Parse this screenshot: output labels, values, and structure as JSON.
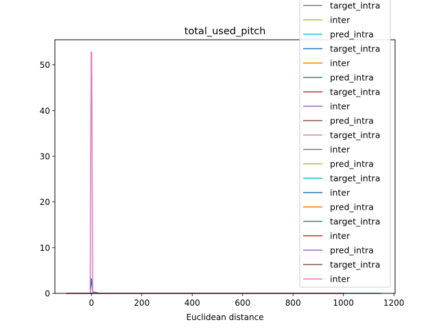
{
  "chart_data": {
    "type": "line",
    "title": "total_used_pitch",
    "xlabel": "Euclidean distance",
    "ylabel": "",
    "xlim": [
      -145,
      1205
    ],
    "ylim": [
      0,
      55.5
    ],
    "x_ticks": [
      0,
      200,
      400,
      600,
      800,
      1000,
      1200
    ],
    "x_tick_labels": [
      "0",
      "200",
      "400",
      "600",
      "800",
      "1000",
      "1200"
    ],
    "y_ticks": [
      0,
      10,
      20,
      30,
      40,
      50
    ],
    "y_tick_labels": [
      "0",
      "10",
      "20",
      "30",
      "40",
      "50"
    ],
    "grid": false,
    "legend_position": "top-right (overflowing above plot area)",
    "series": [
      {
        "name": "target_intra",
        "color": "#7f7f7f",
        "x": [
          -100,
          0,
          1000
        ],
        "y": [
          0,
          0,
          0
        ]
      },
      {
        "name": "inter",
        "color": "#bcbd22",
        "x": [
          -100,
          0,
          1000
        ],
        "y": [
          0,
          0,
          0
        ]
      },
      {
        "name": "pred_intra",
        "color": "#17becf",
        "x": [
          -100,
          0,
          1000
        ],
        "y": [
          0,
          0,
          0
        ]
      },
      {
        "name": "target_intra",
        "color": "#1f77b4",
        "x": [
          -100,
          -5,
          0,
          5,
          30,
          1150
        ],
        "y": [
          0,
          0,
          3.2,
          0.3,
          0.05,
          0
        ]
      },
      {
        "name": "inter",
        "color": "#ff7f0e",
        "x": [
          -100,
          0,
          1000
        ],
        "y": [
          0,
          0,
          0
        ]
      },
      {
        "name": "pred_intra",
        "color": "#2ca02c",
        "x": [
          -100,
          0,
          1000
        ],
        "y": [
          0,
          0,
          0
        ]
      },
      {
        "name": "target_intra",
        "color": "#d62728",
        "x": [
          -100,
          0,
          1000
        ],
        "y": [
          0,
          0,
          0
        ]
      },
      {
        "name": "inter",
        "color": "#9467bd",
        "x": [
          -100,
          0,
          1000
        ],
        "y": [
          0,
          0,
          0
        ]
      },
      {
        "name": "pred_intra",
        "color": "#8c564b",
        "x": [
          -100,
          0,
          1000
        ],
        "y": [
          0,
          0,
          0
        ]
      },
      {
        "name": "target_intra",
        "color": "#e377c2",
        "x": [
          -100,
          -5,
          -1,
          0,
          1,
          5,
          30,
          1000
        ],
        "y": [
          0,
          0,
          52.8,
          52.8,
          52.8,
          0.1,
          0,
          0
        ]
      },
      {
        "name": "inter",
        "color": "#7f7f7f",
        "x": [
          -100,
          0,
          1000
        ],
        "y": [
          0,
          0,
          0
        ]
      },
      {
        "name": "pred_intra",
        "color": "#bcbd22",
        "x": [
          -100,
          0,
          1000
        ],
        "y": [
          0,
          0,
          0
        ]
      },
      {
        "name": "target_intra",
        "color": "#17becf",
        "x": [
          -100,
          0,
          1000
        ],
        "y": [
          0,
          0,
          0
        ]
      },
      {
        "name": "inter",
        "color": "#1f77b4",
        "x": [
          -100,
          0,
          1000
        ],
        "y": [
          0,
          0,
          0
        ]
      },
      {
        "name": "pred_intra",
        "color": "#ff7f0e",
        "x": [
          -100,
          0,
          1000
        ],
        "y": [
          0,
          0,
          0
        ]
      },
      {
        "name": "target_intra",
        "color": "#2ca02c",
        "x": [
          -100,
          0,
          1000
        ],
        "y": [
          0,
          0,
          0
        ]
      },
      {
        "name": "inter",
        "color": "#d62728",
        "x": [
          -100,
          0,
          1000
        ],
        "y": [
          0,
          0,
          0
        ]
      },
      {
        "name": "pred_intra",
        "color": "#9467bd",
        "x": [
          -100,
          0,
          1000
        ],
        "y": [
          0,
          0,
          0
        ]
      },
      {
        "name": "target_intra",
        "color": "#8c564b",
        "x": [
          -100,
          0,
          1000
        ],
        "y": [
          0,
          0,
          0
        ]
      },
      {
        "name": "inter",
        "color": "#e377c2",
        "x": [
          -100,
          0,
          1000
        ],
        "y": [
          0,
          0,
          0
        ]
      }
    ]
  }
}
